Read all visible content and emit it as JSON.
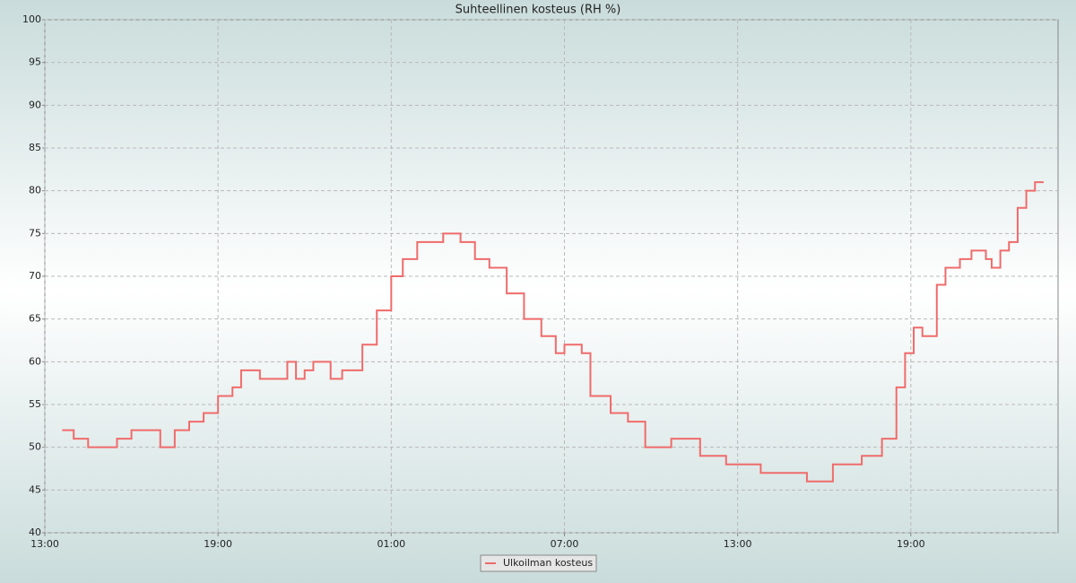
{
  "chart_data": {
    "type": "line",
    "title": "Suhteellinen kosteus (RH %)",
    "x": [
      13.6,
      14.0,
      14.5,
      15.0,
      15.5,
      16.0,
      16.5,
      17.0,
      17.5,
      18.0,
      18.5,
      19.0,
      19.5,
      19.8,
      20.45,
      21.0,
      21.4,
      21.7,
      22.0,
      22.3,
      22.9,
      23.3,
      23.7,
      24.0,
      24.5,
      25.0,
      25.4,
      25.9,
      26.8,
      27.4,
      27.9,
      28.4,
      29.0,
      29.6,
      30.2,
      30.7,
      31.0,
      31.6,
      31.9,
      32.6,
      33.2,
      33.8,
      34.7,
      35.7,
      36.6,
      37.1,
      37.8,
      38.8,
      39.4,
      40.3,
      41.3,
      42.0,
      42.5,
      42.8,
      43.1,
      43.4,
      43.9,
      44.2,
      44.7,
      45.1,
      45.6,
      45.8,
      46.1,
      46.4,
      46.7,
      47.0,
      47.3,
      47.6
    ],
    "series": [
      {
        "name": "Ulkoilman kosteus",
        "color": "#f06b6b",
        "values": [
          52,
          51,
          50,
          50,
          51,
          52,
          52,
          50,
          52,
          53,
          54,
          56,
          57,
          59,
          58,
          58,
          60,
          58,
          59,
          60,
          58,
          59,
          59,
          62,
          66,
          70,
          72,
          74,
          75,
          74,
          72,
          71,
          68,
          65,
          63,
          61,
          62,
          61,
          56,
          54,
          53,
          50,
          51,
          49,
          48,
          48,
          47,
          47,
          46,
          48,
          49,
          51,
          57,
          61,
          64,
          63,
          69,
          71,
          72,
          73,
          72,
          71,
          73,
          74,
          78,
          80,
          81,
          81
        ]
      }
    ],
    "xlim": [
      13,
      48.1
    ],
    "xticks": [
      {
        "value": 13,
        "label": "13:00"
      },
      {
        "value": 19,
        "label": "19:00"
      },
      {
        "value": 25,
        "label": "01:00"
      },
      {
        "value": 31,
        "label": "07:00"
      },
      {
        "value": 37,
        "label": "13:00"
      },
      {
        "value": 43,
        "label": "19:00"
      }
    ],
    "ylim": [
      40,
      100
    ],
    "yticks": [
      40,
      45,
      50,
      55,
      60,
      65,
      70,
      75,
      80,
      85,
      90,
      95,
      100
    ],
    "grid": true
  }
}
